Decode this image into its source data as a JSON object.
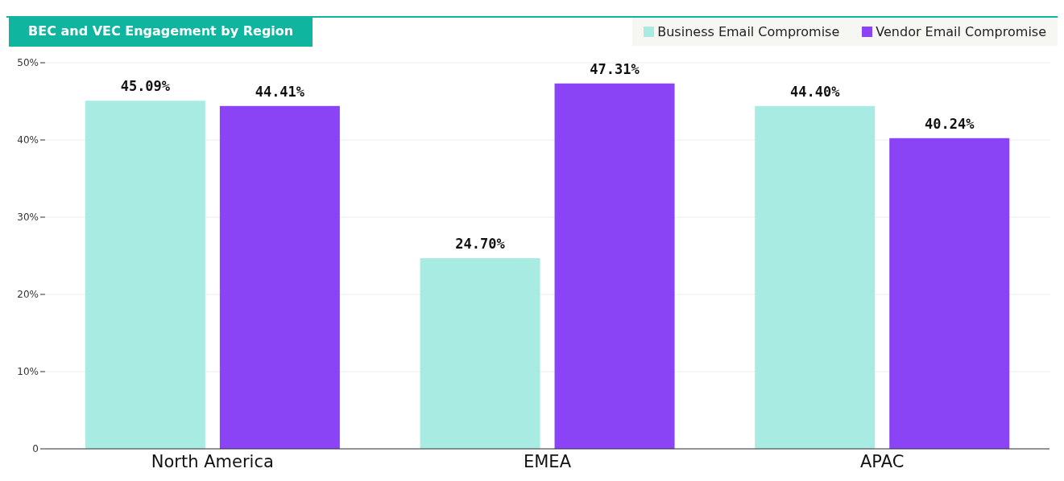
{
  "chart_data": {
    "type": "bar",
    "title": "BEC and VEC Engagement by Region",
    "categories": [
      "North America",
      "EMEA",
      "APAC"
    ],
    "series": [
      {
        "name": "Business Email Compromise",
        "color": "#a8ebe3",
        "values": [
          45.09,
          24.7,
          44.4
        ],
        "value_labels": [
          "45.09%",
          "24.70%",
          "44.40%"
        ]
      },
      {
        "name": "Vendor Email Compromise",
        "color": "#8a44f5",
        "values": [
          44.41,
          47.31,
          40.24
        ],
        "value_labels": [
          "44.41%",
          "47.31%",
          "40.24%"
        ]
      }
    ],
    "ylim": [
      0,
      50
    ],
    "yticks": [
      0,
      {
        "value": 10,
        "label": "10%"
      },
      {
        "value": 20,
        "label": "20%"
      },
      {
        "value": 30,
        "label": "30%"
      },
      {
        "value": 40,
        "label": "40%"
      },
      {
        "value": 50,
        "label": "50%"
      }
    ],
    "grid": "y",
    "legend": "top right"
  }
}
